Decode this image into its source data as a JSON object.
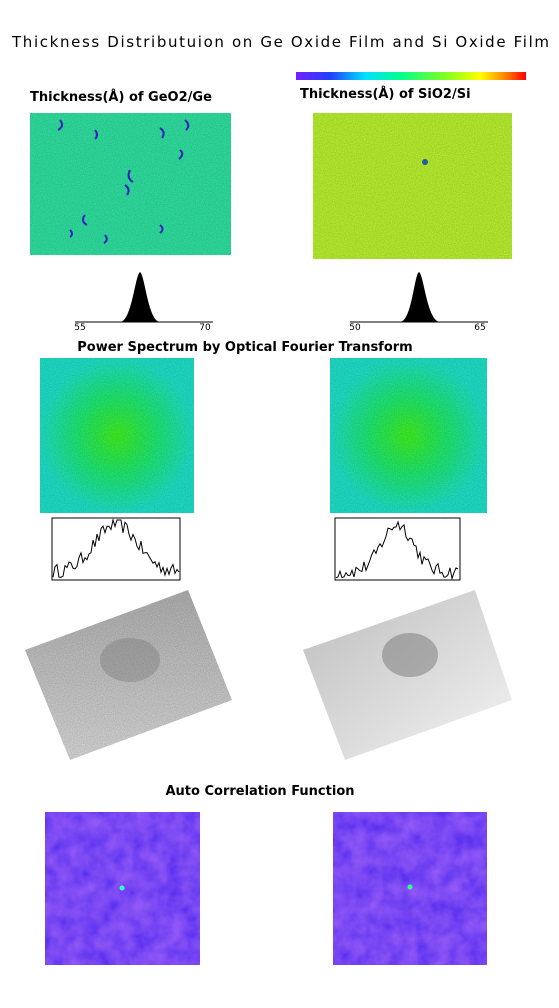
{
  "title": "Thickness Distributuion on Ge Oxide Film and Si Oxide Film",
  "panels": [
    {
      "label": "Thickness(Å) of GeO2/Ge",
      "histogram_ticks": [
        55,
        70
      ]
    },
    {
      "label": "Thickness(Å) of SiO2/Si",
      "histogram_ticks": [
        50,
        65
      ]
    }
  ],
  "sections": [
    "Power Spectrum by Optical Fourier Transform",
    "Auto Correlation Function"
  ]
}
